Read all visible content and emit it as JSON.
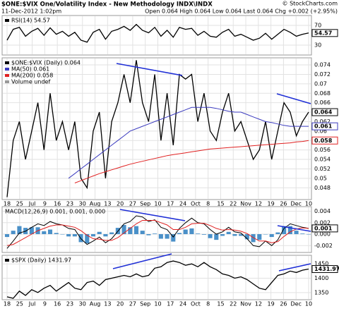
{
  "header": {
    "title": "$ONE:$VIX One/Volatility Index - New Methodology INDX\\INDX",
    "date": "11-Dec-2012 1:02pm",
    "quote": "Open 0.064 High 0.064 Low 0.064 Last 0.064 Chg +0.002 (+2.95%)",
    "copyright": "© StockCharts.com"
  },
  "chart_data": [
    {
      "type": "line",
      "ylim": [
        10,
        90
      ],
      "yticks": [
        70,
        30
      ],
      "grid": true,
      "series": [
        {
          "name": "RSI(14) 54.57",
          "color": "#000000",
          "tag": true,
          "values": [
            40,
            62,
            66,
            48,
            58,
            64,
            50,
            65,
            52,
            58,
            48,
            56,
            40,
            36,
            56,
            62,
            42,
            58,
            62,
            68,
            60,
            72,
            60,
            55,
            66,
            48,
            60,
            46,
            66,
            62,
            64,
            50,
            58,
            48,
            46,
            56,
            62,
            48,
            52,
            46,
            40,
            44,
            54,
            42,
            52,
            62,
            56,
            48,
            52,
            54.57
          ]
        }
      ]
    },
    {
      "type": "line",
      "ylim": [
        0.0455,
        0.0755
      ],
      "yticks": [
        0.048,
        0.05,
        0.052,
        0.054,
        0.056,
        0.058,
        0.06,
        0.062,
        0.064,
        0.066,
        0.068,
        0.07,
        0.072,
        0.074
      ],
      "grid": true,
      "legend_extra": [
        "Volume undef"
      ],
      "x_labels": [
        "18",
        "25",
        "Jul",
        "9",
        "16",
        "23",
        "30",
        "Aug",
        "13",
        "20",
        "27",
        "Sep",
        "10",
        "17",
        "24",
        "Oct",
        "8",
        "15",
        "22",
        "Nov",
        "12",
        "19",
        "26",
        "Dec",
        "10"
      ],
      "series": [
        {
          "name": "$ONE:$VIX (Daily) 0.064",
          "color": "#000000",
          "tag": true,
          "values": [
            0.046,
            0.058,
            0.062,
            0.054,
            0.06,
            0.066,
            0.056,
            0.068,
            0.058,
            0.062,
            0.056,
            0.062,
            0.05,
            0.048,
            0.06,
            0.064,
            0.05,
            0.062,
            0.066,
            0.072,
            0.066,
            0.075,
            0.066,
            0.062,
            0.072,
            0.058,
            0.068,
            0.057,
            0.072,
            0.071,
            0.072,
            0.062,
            0.068,
            0.06,
            0.058,
            0.064,
            0.068,
            0.06,
            0.062,
            0.058,
            0.054,
            0.056,
            0.062,
            0.054,
            0.06,
            0.066,
            0.064,
            0.059,
            0.062,
            0.064
          ]
        },
        {
          "name": "MA(50) 0.061",
          "color": "#3b3bbf",
          "tag": true,
          "values": [
            null,
            null,
            null,
            null,
            null,
            null,
            null,
            null,
            null,
            null,
            0.05,
            0.051,
            0.052,
            0.053,
            0.054,
            0.055,
            0.056,
            0.057,
            0.058,
            0.059,
            0.06,
            0.0605,
            0.061,
            0.0615,
            0.062,
            0.0625,
            0.063,
            0.0635,
            0.064,
            0.0645,
            0.065,
            0.065,
            0.065,
            0.065,
            0.0648,
            0.0645,
            0.0642,
            0.064,
            0.064,
            0.0635,
            0.063,
            0.0625,
            0.062,
            0.0618,
            0.0615,
            0.0612,
            0.061,
            0.061,
            0.061,
            0.061
          ]
        },
        {
          "name": "MA(200) 0.058",
          "color": "#e02020",
          "tag": true,
          "values": [
            null,
            null,
            null,
            null,
            null,
            null,
            null,
            null,
            null,
            null,
            null,
            0.049,
            0.0495,
            0.05,
            0.0505,
            0.051,
            0.0514,
            0.0518,
            0.0522,
            0.0526,
            0.053,
            0.0533,
            0.0536,
            0.0539,
            0.0542,
            0.0545,
            0.0548,
            0.055,
            0.0552,
            0.0554,
            0.0556,
            0.0558,
            0.056,
            0.0562,
            0.0563,
            0.0564,
            0.0565,
            0.0566,
            0.0567,
            0.0568,
            0.0569,
            0.057,
            0.0571,
            0.0572,
            0.0573,
            0.0574,
            0.0575,
            0.0577,
            0.0578,
            0.058
          ]
        }
      ]
    },
    {
      "type": "line",
      "ylim": [
        -0.0032,
        0.0048
      ],
      "yticks": [
        0.004,
        0.002,
        {
          "value": 0,
          "label": "0.000"
        },
        -0.002
      ],
      "grid": true,
      "legend_text": "MACD(12,26,9) 0.001, 0.001, 0.000",
      "series": [
        {
          "name": "Histogram",
          "mark": "bar",
          "color": "#4a90c8",
          "values": [
            -0.0005,
            0.0006,
            0.0014,
            0.0011,
            0.0012,
            0.0012,
            0.0005,
            0.0008,
            0.0002,
            0.0,
            -0.0004,
            -0.0004,
            -0.0014,
            -0.0016,
            -0.0004,
            0.0004,
            -0.0004,
            0.0003,
            0.0011,
            0.0016,
            0.0012,
            0.0014,
            0.0006,
            -0.0002,
            0.0001,
            -0.0008,
            -0.0008,
            -0.0013,
            0.0002,
            0.0008,
            0.001,
            0.0001,
            -0.0001,
            -0.0007,
            -0.001,
            -0.0003,
            0.0004,
            -0.0003,
            -0.0003,
            -0.0009,
            -0.0014,
            -0.001,
            0.0,
            -0.0005,
            0.0003,
            0.0014,
            0.0014,
            0.0006,
            0.0001,
            0.0
          ]
        },
        {
          "name": "MACD",
          "color": "#000000",
          "tag": true,
          "values": [
            -0.0025,
            -0.0012,
            0.0002,
            0.0005,
            0.0012,
            0.0018,
            0.0015,
            0.0022,
            0.0018,
            0.0016,
            0.001,
            0.0008,
            -0.0008,
            -0.0018,
            -0.0012,
            -0.0005,
            -0.0015,
            -0.0008,
            0.0005,
            0.0018,
            0.0022,
            0.0032,
            0.003,
            0.0022,
            0.0025,
            0.0012,
            0.0008,
            -0.0005,
            0.001,
            0.002,
            0.0028,
            0.002,
            0.0018,
            0.0008,
            0.0,
            0.0004,
            0.0012,
            0.0004,
            0.0002,
            -0.0008,
            -0.002,
            -0.0022,
            -0.0012,
            -0.002,
            -0.001,
            0.001,
            0.0018,
            0.0015,
            0.0012,
            0.001
          ]
        },
        {
          "name": "Signal",
          "color": "#e02020",
          "values": [
            -0.002,
            -0.0018,
            -0.0012,
            -0.0006,
            0.0,
            0.0006,
            0.001,
            0.0014,
            0.0016,
            0.0016,
            0.0014,
            0.0012,
            0.0006,
            -0.0002,
            -0.0008,
            -0.0009,
            -0.0011,
            -0.0011,
            -0.0006,
            0.0002,
            0.001,
            0.0018,
            0.0024,
            0.0024,
            0.0024,
            0.002,
            0.0016,
            0.0008,
            0.0008,
            0.0012,
            0.0018,
            0.0019,
            0.0019,
            0.0015,
            0.001,
            0.0007,
            0.0008,
            0.0007,
            0.0005,
            0.0001,
            -0.0006,
            -0.0012,
            -0.0012,
            -0.0015,
            -0.0013,
            -0.0004,
            0.0004,
            0.0009,
            0.0011,
            0.001
          ]
        }
      ]
    },
    {
      "type": "line",
      "ylim": [
        1325,
        1480
      ],
      "yticks": [
        1450,
        1400,
        1350
      ],
      "grid": true,
      "x_labels": [
        "18",
        "25",
        "Jul",
        "9",
        "16",
        "23",
        "30",
        "Aug",
        "13",
        "20",
        "27",
        "Sep",
        "10",
        "17",
        "24",
        "Oct",
        "8",
        "15",
        "22",
        "Nov",
        "12",
        "19",
        "26",
        "Dec",
        "10"
      ],
      "series": [
        {
          "name": "$SPX (Daily) 1431.97",
          "color": "#000000",
          "tag": true,
          "values": [
            1335,
            1330,
            1355,
            1340,
            1360,
            1350,
            1365,
            1375,
            1355,
            1370,
            1385,
            1365,
            1360,
            1385,
            1390,
            1375,
            1395,
            1400,
            1405,
            1410,
            1405,
            1415,
            1405,
            1410,
            1435,
            1440,
            1455,
            1460,
            1455,
            1445,
            1450,
            1440,
            1455,
            1440,
            1430,
            1415,
            1410,
            1400,
            1405,
            1395,
            1380,
            1365,
            1360,
            1385,
            1410,
            1415,
            1425,
            1420,
            1428,
            1431.97
          ]
        }
      ]
    }
  ]
}
